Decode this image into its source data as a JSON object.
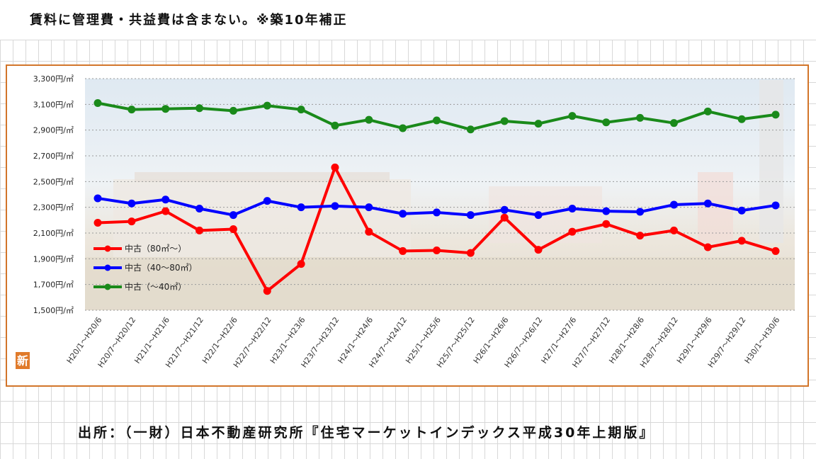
{
  "header": {
    "note": "賃料に管理費・共益費は含まない。※築10年補正"
  },
  "footer": {
    "source": "出所：（一財）日本不動産研究所『住宅マーケットインデックス平成30年上期版』"
  },
  "logo": {
    "text": "新",
    "color": "#e07a2a"
  },
  "chart_data": {
    "type": "line",
    "title": "",
    "xlabel": "",
    "ylabel": "",
    "ylim": [
      1500,
      3300
    ],
    "yticks": [
      1500,
      1700,
      1900,
      2100,
      2300,
      2500,
      2700,
      2900,
      3100,
      3300
    ],
    "ytick_labels": [
      "1,500円/㎡",
      "1,700円/㎡",
      "1,900円/㎡",
      "2,100円/㎡",
      "2,300円/㎡",
      "2,500円/㎡",
      "2,700円/㎡",
      "2,900円/㎡",
      "3,100円/㎡",
      "3,300円/㎡"
    ],
    "grid": "horizontal dashed",
    "legend_position": "left-middle",
    "categories": [
      "H20/1～H20/6",
      "H20/7～H20/12",
      "H21/1～H21/6",
      "H21/7～H21/12",
      "H22/1～H22/6",
      "H22/7～H22/12",
      "H23/1～H23/6",
      "H23/7～H23/12",
      "H24/1～H24/6",
      "H24/7～H24/12",
      "H25/1～H25/6",
      "H25/7～H25/12",
      "H26/1～H26/6",
      "H26/7～H26/12",
      "H27/1～H27/6",
      "H27/7～H27/12",
      "H28/1～H28/6",
      "H28/7～H28/12",
      "H29/1～H29/6",
      "H29/7～H29/12",
      "H30/1～H30/6"
    ],
    "series": [
      {
        "name": "中古（80㎡～）",
        "color": "#ff0000",
        "values": [
          2180,
          2190,
          2270,
          2120,
          2130,
          1650,
          1860,
          2610,
          2110,
          1960,
          1965,
          1945,
          2220,
          1970,
          2110,
          2170,
          2080,
          2120,
          1990,
          2040,
          1960
        ]
      },
      {
        "name": "中古（40～80㎡）",
        "color": "#0000ff",
        "values": [
          2370,
          2330,
          2360,
          2290,
          2240,
          2350,
          2300,
          2310,
          2300,
          2250,
          2260,
          2240,
          2280,
          2240,
          2290,
          2270,
          2265,
          2320,
          2330,
          2275,
          2315
        ]
      },
      {
        "name": "中古（～40㎡）",
        "color": "#1a8a1a",
        "values": [
          3110,
          3060,
          3065,
          3070,
          3050,
          3090,
          3060,
          2935,
          2980,
          2915,
          2975,
          2905,
          2970,
          2950,
          3010,
          2960,
          2995,
          2955,
          3045,
          2985,
          3020
        ]
      }
    ]
  }
}
